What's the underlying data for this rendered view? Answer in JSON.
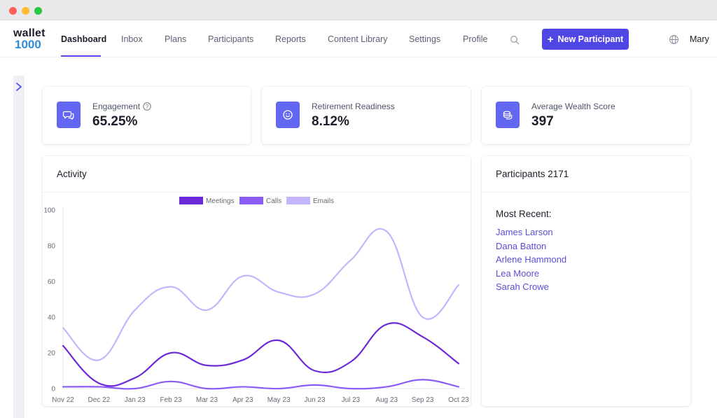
{
  "logo": {
    "line1": "wallet",
    "line2": "1000"
  },
  "nav": {
    "items": [
      {
        "label": "Dashboard",
        "active": true
      },
      {
        "label": "Inbox"
      },
      {
        "label": "Plans"
      },
      {
        "label": "Participants"
      },
      {
        "label": "Reports"
      },
      {
        "label": "Content Library"
      },
      {
        "label": "Settings"
      },
      {
        "label": "Profile"
      }
    ],
    "new_button_label": "New Participant",
    "user_name": "Mary"
  },
  "stats": [
    {
      "label": "Engagement",
      "value": "65.25%",
      "icon": "chat-bubbles-icon",
      "help": "?"
    },
    {
      "label": "Retirement Readiness",
      "value": "8.12%",
      "icon": "smiley-icon"
    },
    {
      "label": "Average Wealth Score",
      "value": "397",
      "icon": "coins-icon"
    }
  ],
  "activity": {
    "title": "Activity"
  },
  "participants": {
    "title": "Participants 2171",
    "recent_heading": "Most Recent:",
    "recent": [
      "James Larson",
      "Dana Batton",
      "Arlene Hammond",
      "Lea Moore",
      "Sarah Crowe"
    ]
  },
  "colors": {
    "accent": "#4f46e5",
    "meetings": "#6d28d9",
    "calls": "#8b5cf6",
    "emails": "#c4b5fd"
  },
  "chart_data": {
    "type": "line",
    "x": [
      "Nov 22",
      "Dec 22",
      "Jan 23",
      "Feb 23",
      "Mar 23",
      "Apr 23",
      "May 23",
      "Jun 23",
      "Jul 23",
      "Aug 23",
      "Sep 23",
      "Oct 23"
    ],
    "series": [
      {
        "name": "Meetings",
        "color": "#6d28d9",
        "values": [
          24,
          3,
          6,
          20,
          13,
          16,
          27,
          10,
          15,
          36,
          29,
          14
        ]
      },
      {
        "name": "Calls",
        "color": "#8b5cf6",
        "values": [
          1,
          1,
          0,
          4,
          0,
          1,
          0,
          2,
          0,
          1,
          5,
          1
        ]
      },
      {
        "name": "Emails",
        "color": "#c4b5fd",
        "values": [
          34,
          16,
          44,
          57,
          44,
          63,
          54,
          53,
          72,
          88,
          40,
          58
        ]
      }
    ],
    "yticks": [
      "0",
      "20",
      "40",
      "60",
      "80",
      "100"
    ],
    "ylim": [
      0,
      100
    ],
    "legend": "top-center",
    "grid": false,
    "smooth": true
  }
}
